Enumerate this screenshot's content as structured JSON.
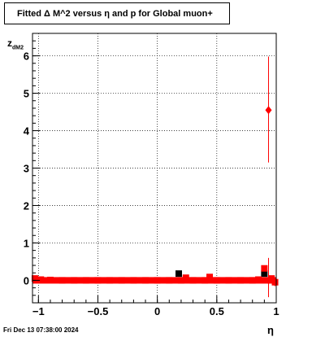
{
  "title": "Fitted Δ M^2 versus η and p for Global muon+",
  "timestamp": "Fri Dec 13 07:38:00 2024",
  "xlabel": "η",
  "ylabel_main": "z",
  "ylabel_sub": "dM2",
  "colors": {
    "primary": "#ff0000",
    "secondary": "#000000",
    "grid": "#000000"
  },
  "chart_data": {
    "type": "scatter",
    "title": "Fitted Δ M^2 versus η and p for Global muon+",
    "xlabel": "η",
    "ylabel": "z_dM2",
    "xlim": [
      -1.05,
      1.0
    ],
    "ylim": [
      -0.6,
      6.6
    ],
    "grid": true,
    "xticks": [
      -1,
      -0.5,
      0,
      0.5,
      1
    ],
    "xtick_labels": [
      "−1",
      "−0.5",
      "0",
      "0.5",
      "1"
    ],
    "yticks": [
      0,
      1,
      2,
      3,
      4,
      5,
      6
    ],
    "ytick_labels": [
      "0",
      "1",
      "2",
      "3",
      "4",
      "5",
      "6"
    ],
    "series": [
      {
        "color": "#000000",
        "marker": "square",
        "points": [
          {
            "x": 0.18,
            "y": 0.18
          },
          {
            "x": 0.9,
            "y": 0.18
          }
        ]
      },
      {
        "color": "#ff0000",
        "marker": "square",
        "points": [
          {
            "x": -1.03,
            "y": 0.05
          },
          {
            "x": -0.98,
            "y": 0.02
          },
          {
            "x": -0.9,
            "y": 0.01
          },
          {
            "x": -0.8,
            "y": 0.0
          },
          {
            "x": -0.7,
            "y": 0.0
          },
          {
            "x": -0.6,
            "y": 0.0
          },
          {
            "x": -0.5,
            "y": 0.0
          },
          {
            "x": -0.4,
            "y": 0.0
          },
          {
            "x": -0.3,
            "y": 0.0
          },
          {
            "x": -0.2,
            "y": 0.0
          },
          {
            "x": -0.1,
            "y": 0.0
          },
          {
            "x": 0.0,
            "y": 0.0
          },
          {
            "x": 0.1,
            "y": 0.0
          },
          {
            "x": 0.2,
            "y": 0.0
          },
          {
            "x": 0.24,
            "y": 0.07
          },
          {
            "x": 0.3,
            "y": 0.0
          },
          {
            "x": 0.4,
            "y": 0.0
          },
          {
            "x": 0.44,
            "y": 0.09
          },
          {
            "x": 0.5,
            "y": 0.0
          },
          {
            "x": 0.6,
            "y": 0.0
          },
          {
            "x": 0.7,
            "y": 0.0
          },
          {
            "x": 0.8,
            "y": 0.0
          },
          {
            "x": 0.85,
            "y": 0.02
          },
          {
            "x": 0.9,
            "y": 0.32
          },
          {
            "x": 0.96,
            "y": 0.05
          },
          {
            "x": 0.99,
            "y": -0.05
          }
        ]
      },
      {
        "color": "#ff0000",
        "marker": "diamond",
        "error_bars": true,
        "points": [
          {
            "x": 0.935,
            "y": 4.55,
            "ylow": 3.15,
            "yhigh": 5.98
          },
          {
            "x": 0.935,
            "y": 0.0,
            "ylow": -0.45,
            "yhigh": 0.6
          },
          {
            "x": 0.99,
            "y": -0.05,
            "ylow": -0.15,
            "yhigh": 0.05
          }
        ]
      }
    ],
    "band": {
      "color": "#ff0000",
      "x_from": -1.05,
      "x_to": 1.0,
      "y": 0.0
    }
  }
}
